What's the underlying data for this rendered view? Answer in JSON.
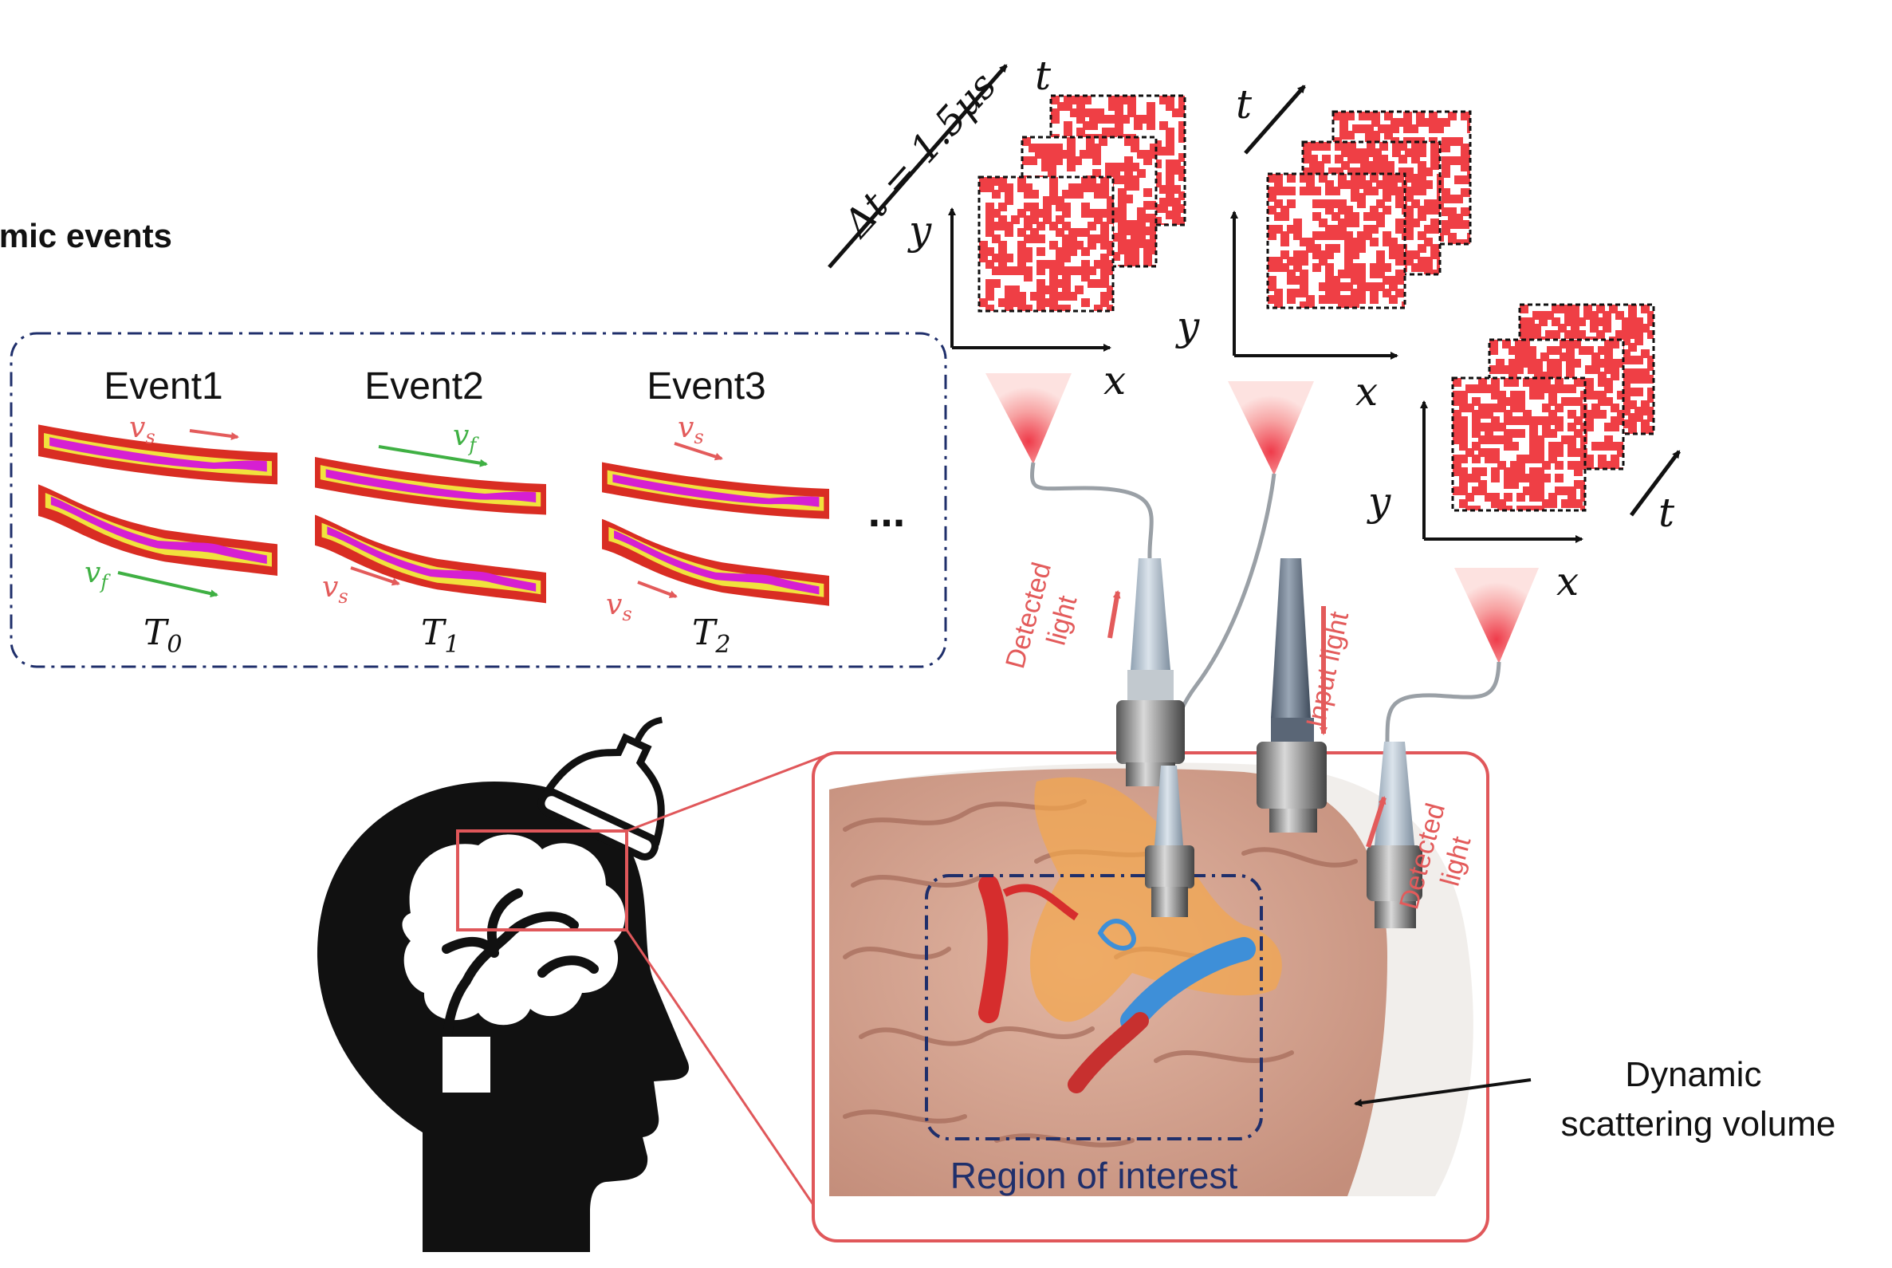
{
  "title": "Hemodynamic events",
  "events": [
    {
      "label": "Event1",
      "time": "T",
      "time_sub": "0",
      "top_vel": "v",
      "top_vel_sub": "s",
      "bottom_vel": "v",
      "bottom_vel_sub": "f"
    },
    {
      "label": "Event2",
      "time": "T",
      "time_sub": "1",
      "top_vel": "v",
      "top_vel_sub": "f",
      "bottom_vel": "v",
      "bottom_vel_sub": "s"
    },
    {
      "label": "Event3",
      "time": "T",
      "time_sub": "2",
      "top_vel": "v",
      "top_vel_sub": "s",
      "bottom_vel": "v",
      "bottom_vel_sub": "s"
    }
  ],
  "ellipsis": "...",
  "dt_label": "Δt = 1.5μs",
  "axes": {
    "x": "x",
    "y": "y",
    "t": "t"
  },
  "light_labels": {
    "detected_left": [
      "Detected",
      "light"
    ],
    "input": "Input light",
    "detected_right": [
      "Detected",
      "light"
    ]
  },
  "region_of_interest": "Region of interest",
  "dynamic_volume": [
    "Dynamic",
    "scattering volume"
  ],
  "colors": {
    "frame_red": "#e0575a",
    "speckle_red": "#ef3f45",
    "dashed_blue": "#1f2f6b",
    "velocity_slow": "#e35b5b",
    "velocity_fast": "#3fb043",
    "vessel_magenta": "#d61fd2",
    "vessel_yellow": "#f1e23d",
    "vessel_red": "#d92d23",
    "brain_tone": "#d8a896",
    "probe_grey": "#b9c5cf"
  }
}
